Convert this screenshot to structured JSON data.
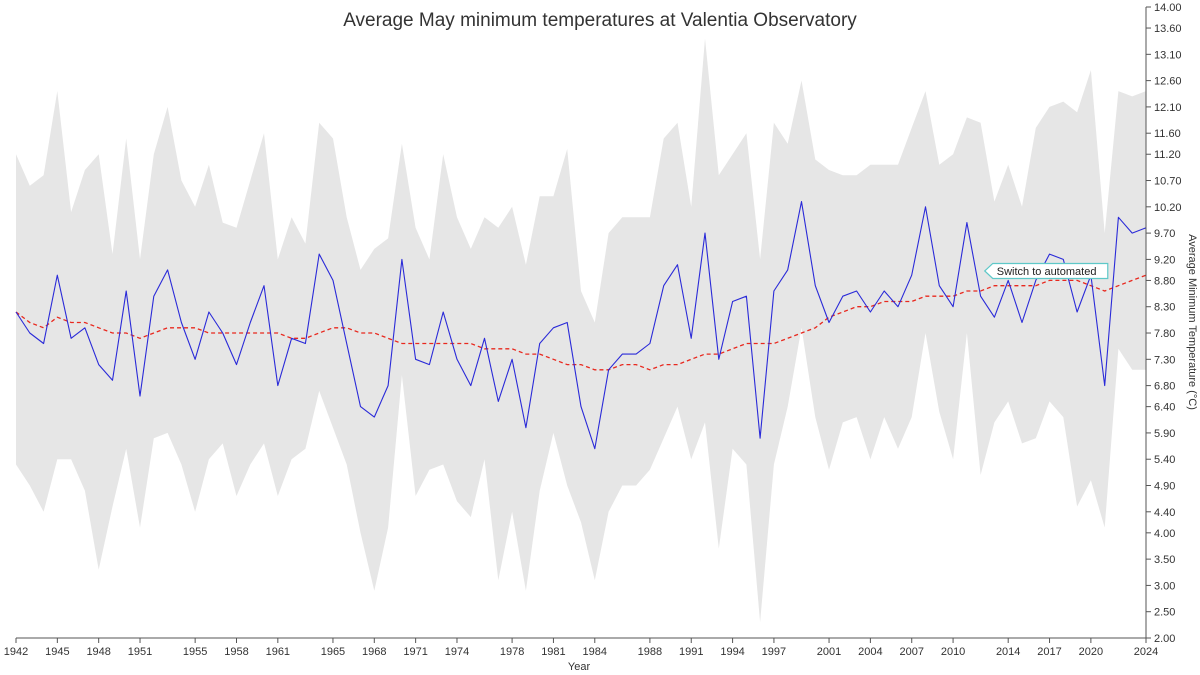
{
  "chart_data": {
    "type": "line",
    "title": "Average May minimum temperatures at Valentia Observatory",
    "xlabel": "Year",
    "ylabel": "Average Minimum Temperature (°C)",
    "x_start": 1942,
    "x_end": 2024,
    "xlim": [
      1942,
      2024
    ],
    "ylim": [
      2.0,
      14.0
    ],
    "y_ticks": [
      "2.00",
      "2.50",
      "3.00",
      "3.50",
      "4.00",
      "4.40",
      "4.90",
      "5.40",
      "5.90",
      "6.40",
      "6.80",
      "7.30",
      "7.80",
      "8.30",
      "8.80",
      "9.20",
      "9.70",
      "10.20",
      "10.70",
      "11.20",
      "11.60",
      "12.10",
      "12.60",
      "13.10",
      "13.60",
      "14.00"
    ],
    "x_ticks": [
      "1942",
      "1945",
      "1948",
      "1951",
      "1955",
      "1958",
      "1961",
      "1965",
      "1968",
      "1971",
      "1974",
      "1978",
      "1981",
      "1984",
      "1988",
      "1991",
      "1994",
      "1997",
      "2001",
      "2004",
      "2007",
      "2010",
      "2014",
      "2017",
      "2020",
      "2024"
    ],
    "grid": false,
    "y_axis_position": "right",
    "series": [
      {
        "values": [
          8.2,
          7.8,
          7.6,
          8.9,
          7.7,
          7.9,
          7.2,
          6.9,
          8.6,
          6.6,
          8.5,
          9.0,
          8.0,
          7.3,
          8.2,
          7.8,
          7.2,
          8.0,
          8.7,
          6.8,
          7.7,
          7.6,
          9.3,
          8.8,
          7.6,
          6.4,
          6.2,
          6.8,
          9.2,
          7.3,
          7.2,
          8.2,
          7.3,
          6.8,
          7.7,
          6.5,
          7.3,
          6.0,
          7.6,
          7.9,
          8.0,
          6.4,
          5.6,
          7.1,
          7.4,
          7.4,
          7.6,
          8.7,
          9.1,
          7.7,
          9.7,
          7.3,
          8.4,
          8.5,
          5.8,
          8.6,
          9.0,
          10.3,
          8.7,
          8.0,
          8.5,
          8.6,
          8.2,
          8.6,
          8.3,
          8.9,
          10.2,
          8.7,
          8.3,
          9.9,
          8.5,
          8.1,
          8.8,
          8.0,
          8.8,
          9.3,
          9.2,
          8.2,
          8.9,
          6.8,
          10.0,
          9.7,
          9.8
        ]
      },
      {
        "values": [
          8.2,
          8.0,
          7.9,
          8.1,
          8.0,
          8.0,
          7.9,
          7.8,
          7.8,
          7.7,
          7.8,
          7.9,
          7.9,
          7.9,
          7.8,
          7.8,
          7.8,
          7.8,
          7.8,
          7.8,
          7.7,
          7.7,
          7.8,
          7.9,
          7.9,
          7.8,
          7.8,
          7.7,
          7.6,
          7.6,
          7.6,
          7.6,
          7.6,
          7.6,
          7.5,
          7.5,
          7.5,
          7.4,
          7.4,
          7.3,
          7.2,
          7.2,
          7.1,
          7.1,
          7.2,
          7.2,
          7.1,
          7.2,
          7.2,
          7.3,
          7.4,
          7.4,
          7.5,
          7.6,
          7.6,
          7.6,
          7.7,
          7.8,
          7.9,
          8.1,
          8.2,
          8.3,
          8.3,
          8.4,
          8.4,
          8.4,
          8.5,
          8.5,
          8.5,
          8.6,
          8.6,
          8.7,
          8.7,
          8.7,
          8.7,
          8.8,
          8.8,
          8.8,
          8.7,
          8.6,
          8.7,
          8.8,
          8.9
        ]
      }
    ],
    "band": {
      "upper": [
        11.2,
        10.6,
        10.8,
        12.4,
        10.1,
        10.9,
        11.2,
        9.3,
        11.5,
        9.2,
        11.2,
        12.1,
        10.7,
        10.2,
        11.0,
        9.9,
        9.8,
        10.7,
        11.6,
        9.2,
        10.0,
        9.5,
        11.8,
        11.5,
        10.0,
        9.0,
        9.4,
        9.6,
        11.4,
        9.8,
        9.2,
        11.2,
        10.0,
        9.4,
        10.0,
        9.8,
        10.2,
        9.1,
        10.4,
        10.4,
        11.3,
        8.6,
        8.0,
        9.7,
        10.0,
        10.0,
        10.0,
        11.5,
        11.8,
        10.2,
        13.4,
        10.8,
        11.2,
        11.6,
        9.2,
        11.8,
        11.4,
        12.6,
        11.1,
        10.9,
        10.8,
        10.8,
        11.0,
        11.0,
        11.0,
        11.7,
        12.4,
        11.0,
        11.2,
        11.9,
        11.8,
        10.3,
        11.0,
        10.2,
        11.7,
        12.1,
        12.2,
        12.0,
        12.8,
        9.7,
        12.4,
        12.3,
        12.4
      ],
      "lower": [
        5.3,
        4.9,
        4.4,
        5.4,
        5.4,
        4.8,
        3.3,
        4.5,
        5.6,
        4.1,
        5.8,
        5.9,
        5.3,
        4.4,
        5.4,
        5.7,
        4.7,
        5.3,
        5.7,
        4.7,
        5.4,
        5.6,
        6.7,
        6.0,
        5.3,
        4.0,
        2.9,
        4.1,
        7.0,
        4.7,
        5.2,
        5.3,
        4.6,
        4.3,
        5.4,
        3.1,
        4.4,
        2.9,
        4.8,
        5.9,
        4.9,
        4.2,
        3.1,
        4.4,
        4.9,
        4.9,
        5.2,
        5.8,
        6.4,
        5.4,
        6.1,
        3.7,
        5.6,
        5.3,
        2.3,
        5.3,
        6.4,
        7.9,
        6.2,
        5.2,
        6.1,
        6.2,
        5.4,
        6.2,
        5.6,
        6.2,
        7.8,
        6.3,
        5.4,
        7.8,
        5.1,
        6.1,
        6.5,
        5.7,
        5.8,
        6.5,
        6.2,
        4.5,
        5.0,
        4.1,
        7.5,
        7.1,
        7.1
      ]
    },
    "annotations": [
      {
        "text": "Switch to automated",
        "x": 2012.3,
        "y": 8.98
      }
    ],
    "colors": {
      "actual_line": "#2a2ad8",
      "trend_line": "#e8281e",
      "band_fill": "#e6e6e6",
      "annotation_border": "#5ec8c8",
      "axis": "#555555"
    }
  }
}
